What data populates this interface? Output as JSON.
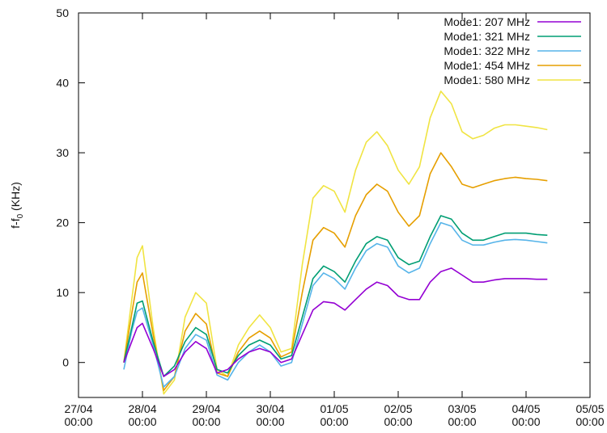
{
  "chart_data": {
    "type": "line",
    "title": "",
    "xlabel": "",
    "ylabel": {
      "main": "f-f",
      "sub": "0",
      "unit": " (KHz)"
    },
    "ylim": [
      -5,
      50
    ],
    "yticks": [
      0,
      10,
      20,
      30,
      40,
      50
    ],
    "xlim": [
      "27/04 00:00",
      "05/05 00:00"
    ],
    "xticks": [
      {
        "date": "27/04",
        "time": "00:00"
      },
      {
        "date": "28/04",
        "time": "00:00"
      },
      {
        "date": "29/04",
        "time": "00:00"
      },
      {
        "date": "30/04",
        "time": "00:00"
      },
      {
        "date": "01/05",
        "time": "00:00"
      },
      {
        "date": "02/05",
        "time": "00:00"
      },
      {
        "date": "03/05",
        "time": "00:00"
      },
      {
        "date": "04/05",
        "time": "00:00"
      },
      {
        "date": "05/05",
        "time": "00:00"
      }
    ],
    "grid": false,
    "legend_position": "top-right",
    "x": [
      "27/04 17:00",
      "27/04 20:00",
      "27/04 22:00",
      "28/04 00:00",
      "28/04 04:00",
      "28/04 08:00",
      "28/04 12:00",
      "28/04 16:00",
      "28/04 20:00",
      "29/04 00:00",
      "29/04 04:00",
      "29/04 08:00",
      "29/04 12:00",
      "29/04 16:00",
      "29/04 20:00",
      "30/04 00:00",
      "30/04 04:00",
      "30/04 08:00",
      "30/04 12:00",
      "30/04 16:00",
      "30/04 20:00",
      "01/05 00:00",
      "01/05 04:00",
      "01/05 08:00",
      "01/05 12:00",
      "01/05 16:00",
      "01/05 20:00",
      "02/05 00:00",
      "02/05 04:00",
      "02/05 08:00",
      "02/05 12:00",
      "02/05 16:00",
      "02/05 20:00",
      "03/05 00:00",
      "03/05 04:00",
      "03/05 08:00",
      "03/05 12:00",
      "03/05 16:00",
      "03/05 20:00",
      "04/05 00:00",
      "04/05 04:00",
      "04/05 08:00"
    ],
    "series": [
      {
        "name": "Mode1: 207 MHz",
        "color": "#9400d3",
        "values": [
          0.0,
          3.0,
          5.0,
          5.6,
          2.0,
          -2.0,
          -1.0,
          1.5,
          3.0,
          2.0,
          -1.5,
          -1.0,
          0.5,
          1.5,
          2.0,
          1.5,
          0.0,
          0.5,
          4.0,
          7.5,
          8.7,
          8.5,
          7.5,
          9.0,
          10.5,
          11.5,
          11.0,
          9.5,
          9.0,
          9.0,
          11.5,
          13.0,
          13.5,
          12.5,
          11.5,
          11.5,
          11.8,
          12.0,
          12.0,
          12.0,
          11.9,
          11.9
        ]
      },
      {
        "name": "Mode1: 321 MHz",
        "color": "#009e73",
        "values": [
          0.0,
          5.0,
          8.5,
          8.8,
          3.0,
          -2.0,
          -0.5,
          3.0,
          5.0,
          4.0,
          -1.0,
          -1.5,
          1.0,
          2.5,
          3.2,
          2.5,
          0.5,
          1.0,
          6.5,
          12.0,
          13.8,
          13.0,
          11.5,
          14.5,
          17.0,
          18.0,
          17.5,
          15.0,
          14.0,
          14.5,
          18.0,
          21.0,
          20.5,
          18.5,
          17.5,
          17.5,
          18.0,
          18.5,
          18.5,
          18.5,
          18.3,
          18.2
        ]
      },
      {
        "name": "Mode1: 322 MHz",
        "color": "#56b4e9",
        "values": [
          -1.0,
          4.5,
          7.3,
          7.8,
          2.5,
          -3.5,
          -2.0,
          2.0,
          4.0,
          3.2,
          -1.8,
          -2.5,
          0.0,
          1.5,
          2.5,
          1.5,
          -0.5,
          0.0,
          5.5,
          11.0,
          12.8,
          12.0,
          10.5,
          13.5,
          16.0,
          17.0,
          16.5,
          13.8,
          12.8,
          13.5,
          17.0,
          20.0,
          19.5,
          17.5,
          16.8,
          16.8,
          17.2,
          17.5,
          17.6,
          17.5,
          17.3,
          17.1
        ]
      },
      {
        "name": "Mode1: 454 MHz",
        "color": "#e69f00",
        "values": [
          0.0,
          7.0,
          11.5,
          12.8,
          4.0,
          -4.0,
          -2.0,
          4.5,
          7.0,
          5.5,
          -1.5,
          -2.0,
          1.5,
          3.5,
          4.5,
          3.5,
          0.8,
          1.5,
          10.0,
          17.5,
          19.3,
          18.5,
          16.5,
          21.0,
          24.0,
          25.5,
          24.5,
          21.5,
          19.5,
          21.0,
          27.0,
          30.0,
          28.0,
          25.5,
          25.0,
          25.5,
          26.0,
          26.3,
          26.5,
          26.3,
          26.2,
          26.0
        ]
      },
      {
        "name": "Mode1: 580 MHz",
        "color": "#f0e442",
        "values": [
          0.0,
          9.0,
          15.0,
          16.7,
          5.0,
          -4.5,
          -2.5,
          6.5,
          10.0,
          8.5,
          -1.0,
          -2.0,
          2.5,
          5.0,
          6.8,
          5.0,
          1.5,
          2.0,
          14.0,
          23.5,
          25.3,
          24.5,
          21.5,
          27.5,
          31.5,
          33.0,
          31.0,
          27.5,
          25.5,
          28.0,
          35.0,
          38.8,
          37.0,
          33.0,
          32.0,
          32.5,
          33.5,
          34.0,
          34.0,
          33.8,
          33.6,
          33.3
        ]
      }
    ]
  }
}
